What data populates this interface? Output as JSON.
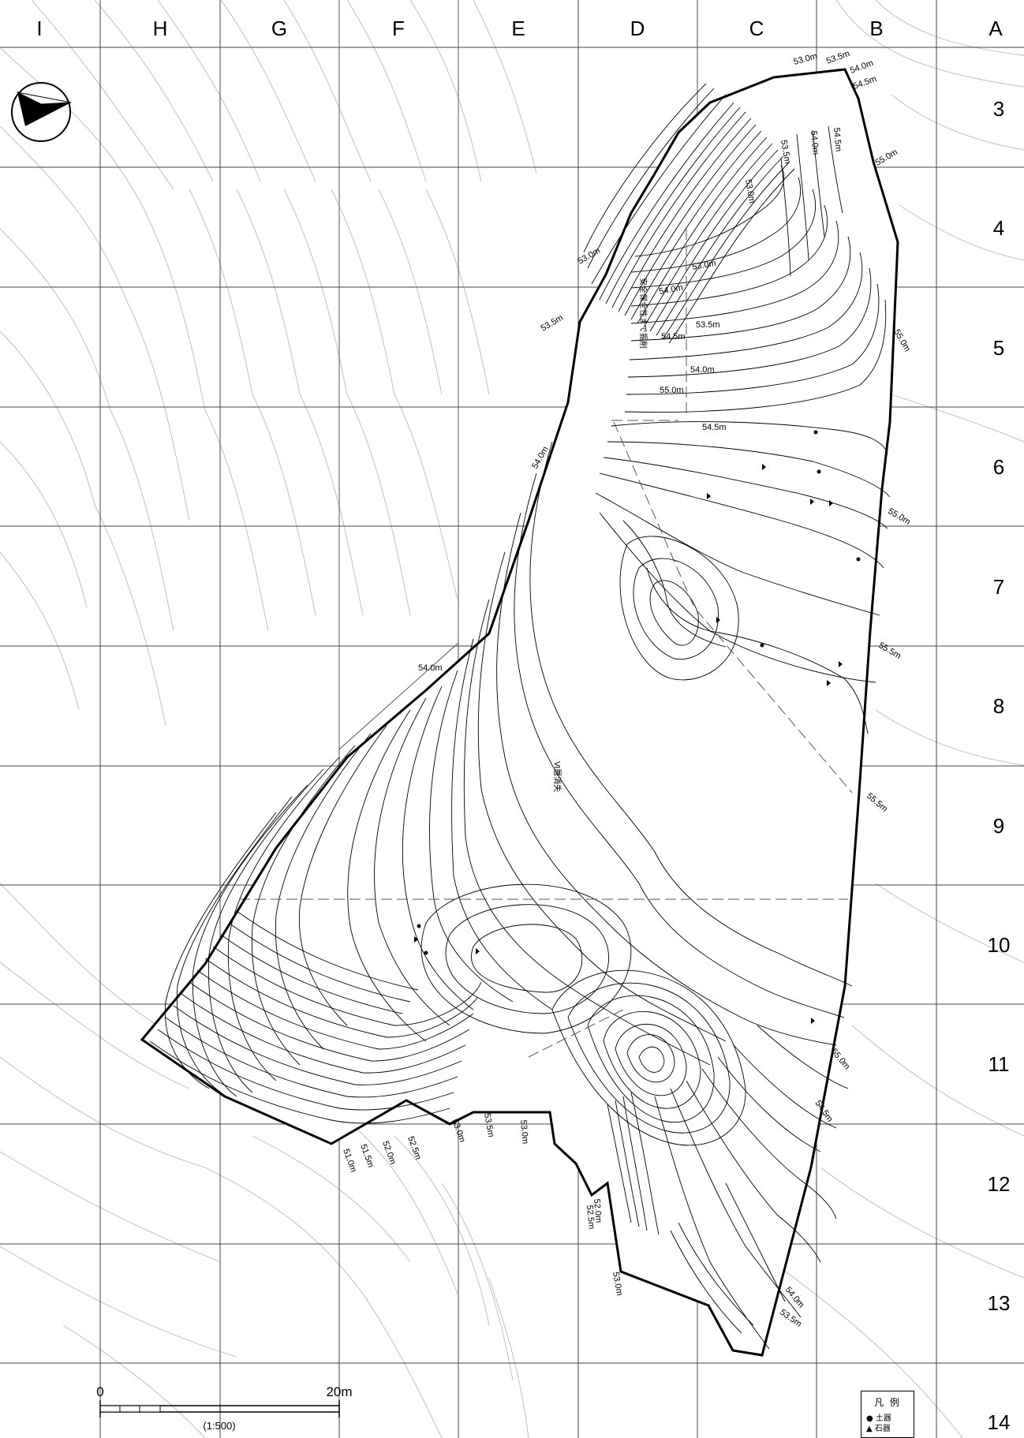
{
  "grid": {
    "columns": [
      "I",
      "H",
      "G",
      "F",
      "E",
      "D",
      "C",
      "B",
      "A"
    ],
    "rows": [
      "3",
      "4",
      "5",
      "6",
      "7",
      "8",
      "9",
      "10",
      "11",
      "12",
      "13",
      "14"
    ]
  },
  "contour_labels": [
    {
      "text": "53.0m"
    },
    {
      "text": "53.5m"
    },
    {
      "text": "54.0m"
    },
    {
      "text": "54.5m"
    },
    {
      "text": "53.5m"
    },
    {
      "text": "54.0m"
    },
    {
      "text": "54.5m"
    },
    {
      "text": "55.0m"
    },
    {
      "text": "53.0m"
    },
    {
      "text": "53.0m"
    },
    {
      "text": "53.5m"
    },
    {
      "text": "53.0m"
    },
    {
      "text": "54.0m"
    },
    {
      "text": "53.5m"
    },
    {
      "text": "54.5m"
    },
    {
      "text": "54.0m"
    },
    {
      "text": "55.0m"
    },
    {
      "text": "54.5m"
    },
    {
      "text": "55.0m"
    },
    {
      "text": "54.0m"
    },
    {
      "text": "55.0m"
    },
    {
      "text": "55.5m"
    },
    {
      "text": "54.0m"
    },
    {
      "text": "55.5m"
    },
    {
      "text": "55.0m"
    },
    {
      "text": "54.5m"
    },
    {
      "text": "51.0m"
    },
    {
      "text": "51.5m"
    },
    {
      "text": "52.0m"
    },
    {
      "text": "52.5m"
    },
    {
      "text": "53.0m"
    },
    {
      "text": "53.5m"
    },
    {
      "text": "53.0m"
    },
    {
      "text": "52.5m"
    },
    {
      "text": "52.0m"
    },
    {
      "text": "53.0m"
    },
    {
      "text": "54.0m"
    },
    {
      "text": "53.5m"
    }
  ],
  "annotations": {
    "trench_note": "安全保全性まで掘削",
    "layer_note": "Ⅵ層消失"
  },
  "scale_bar": {
    "zero_label": "0",
    "end_label": "20m",
    "ratio_label": "(1:500)"
  },
  "legend": {
    "title": "凡 例",
    "items": [
      {
        "symbol": "●",
        "label": "土器"
      },
      {
        "symbol": "▲",
        "label": "石器"
      }
    ]
  }
}
